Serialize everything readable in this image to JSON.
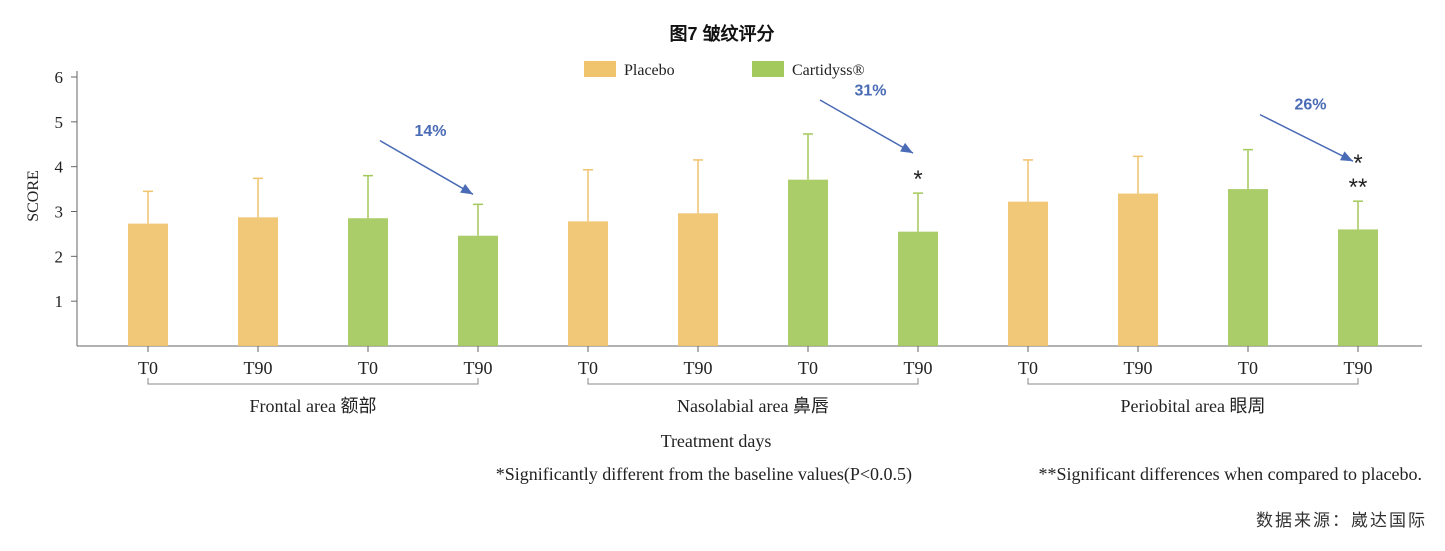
{
  "chart_data": {
    "type": "bar",
    "title": "图7 皱纹评分",
    "ylabel": "SCORE",
    "xlabel": "Treatment days",
    "ylim": [
      0,
      6
    ],
    "yticks": [
      1,
      2,
      3,
      4,
      5,
      6
    ],
    "grid": false,
    "legend": [
      {
        "name": "Placebo",
        "color": "#f0c36d"
      },
      {
        "name": "Cartidyss®",
        "color": "#a3c95c"
      }
    ],
    "groups": [
      {
        "label": "Frontal area 额部",
        "arrow_label": "14%",
        "bars": [
          {
            "tick": "T0",
            "series": "Placebo",
            "value": 2.73,
            "error": 0.72,
            "marker": ""
          },
          {
            "tick": "T90",
            "series": "Placebo",
            "value": 2.87,
            "error": 0.87,
            "marker": ""
          },
          {
            "tick": "T0",
            "series": "Cartidyss®",
            "value": 2.85,
            "error": 0.95,
            "marker": ""
          },
          {
            "tick": "T90",
            "series": "Cartidyss®",
            "value": 2.46,
            "error": 0.7,
            "marker": ""
          }
        ]
      },
      {
        "label": "Nasolabial area 鼻唇",
        "arrow_label": "31%",
        "bars": [
          {
            "tick": "T0",
            "series": "Placebo",
            "value": 2.78,
            "error": 1.15,
            "marker": ""
          },
          {
            "tick": "T90",
            "series": "Placebo",
            "value": 2.96,
            "error": 1.19,
            "marker": ""
          },
          {
            "tick": "T0",
            "series": "Cartidyss®",
            "value": 3.71,
            "error": 1.02,
            "marker": ""
          },
          {
            "tick": "T90",
            "series": "Cartidyss®",
            "value": 2.55,
            "error": 0.86,
            "marker": "*"
          }
        ]
      },
      {
        "label": "Periobital area 眼周",
        "arrow_label": "26%",
        "bars": [
          {
            "tick": "T0",
            "series": "Placebo",
            "value": 3.22,
            "error": 0.93,
            "marker": ""
          },
          {
            "tick": "T90",
            "series": "Placebo",
            "value": 3.4,
            "error": 0.83,
            "marker": ""
          },
          {
            "tick": "T0",
            "series": "Cartidyss®",
            "value": 3.5,
            "error": 0.88,
            "marker": ""
          },
          {
            "tick": "T90",
            "series": "Cartidyss®",
            "value": 2.6,
            "error": 0.63,
            "marker": "*\n**"
          }
        ]
      }
    ],
    "footnotes": [
      "*Significantly different from the baseline values(P<0.0.5)",
      "**Significant differences when compared to placebo."
    ]
  },
  "source_text": "数据来源：崴达国际",
  "colors": {
    "arrow": "#4a6bb5",
    "error_bar": "#d8c56a",
    "axis": "#666666"
  }
}
